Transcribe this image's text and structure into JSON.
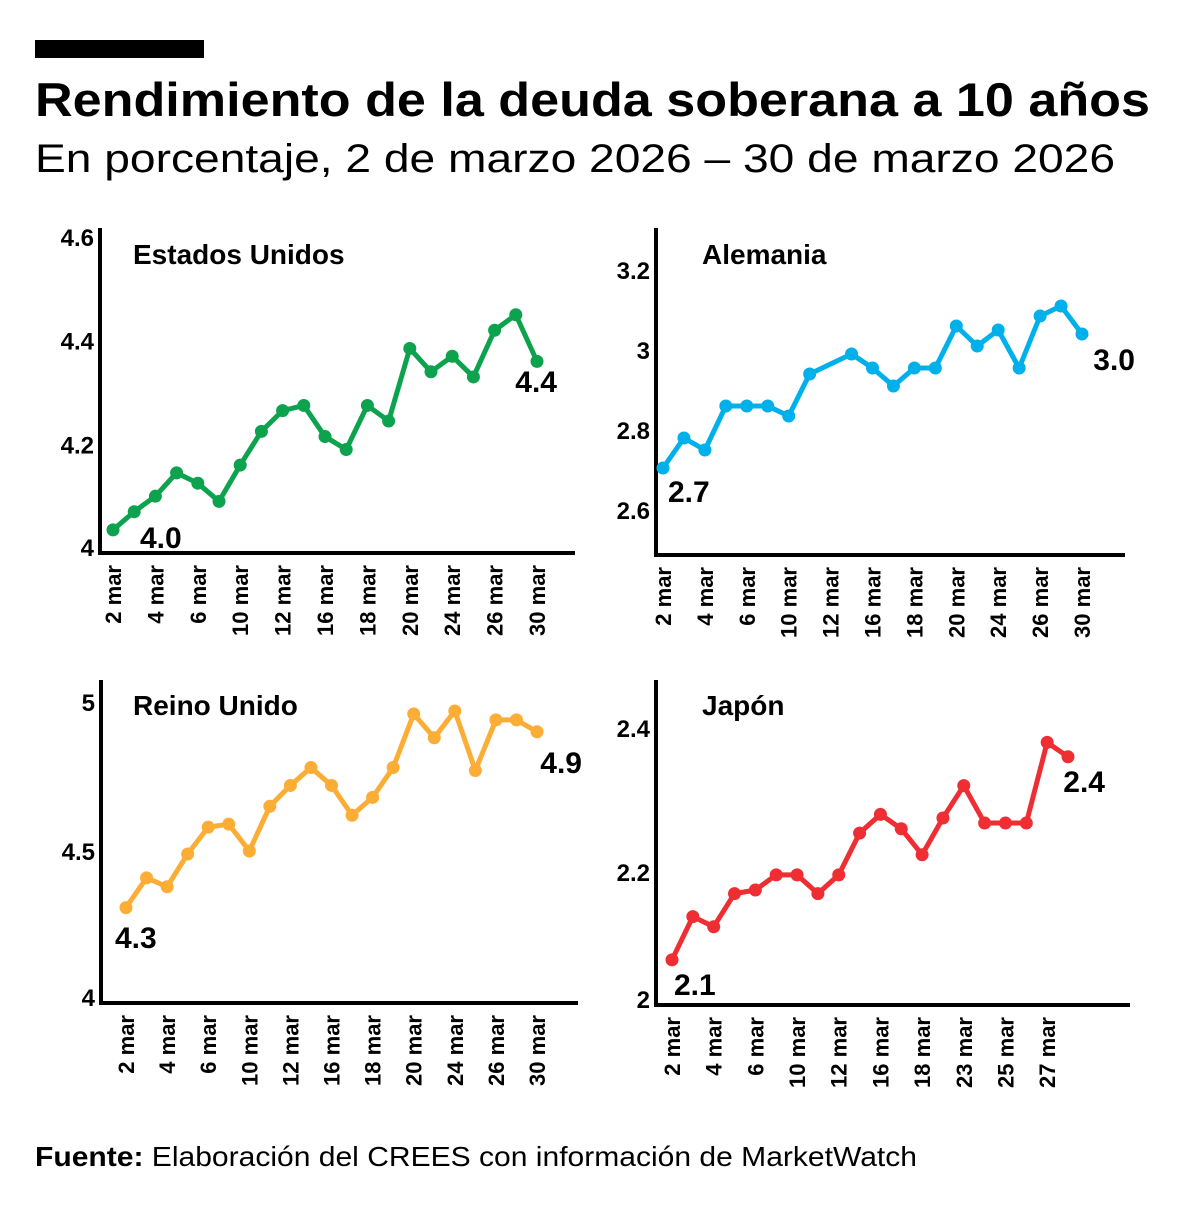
{
  "header": {
    "title": "Rendimiento de la deuda soberana a 10 años",
    "subtitle": "En porcentaje, 2 de marzo 2026 – 30 de marzo 2026"
  },
  "source": {
    "label": "Fuente:",
    "text": " Elaboración del CREES con información de MarketWatch"
  },
  "chart_data": [
    {
      "type": "line",
      "title": "Estados Unidos",
      "color": "#0ca24e",
      "categories": [
        "2 mar",
        "3 mar",
        "4 mar",
        "5 mar",
        "6 mar",
        "9 mar",
        "10 mar",
        "11 mar",
        "12 mar",
        "13 mar",
        "16 mar",
        "17 mar",
        "18 mar",
        "19 mar",
        "20 mar",
        "23 mar",
        "24 mar",
        "25 mar",
        "26 mar",
        "27 mar",
        "30 mar"
      ],
      "values": [
        4.035,
        4.07,
        4.1,
        4.145,
        4.125,
        4.09,
        4.16,
        4.225,
        4.265,
        4.275,
        4.215,
        4.19,
        4.275,
        4.245,
        4.385,
        4.34,
        4.37,
        4.33,
        4.42,
        4.45,
        4.36
      ],
      "x_tick_labels": [
        "2 mar",
        "4 mar",
        "6 mar",
        "10 mar",
        "12 mar",
        "16 mar",
        "18 mar",
        "20 mar",
        "24 mar",
        "26 mar",
        "30 mar"
      ],
      "y_tick_labels": [
        "4",
        "4.2",
        "4.4",
        "4.6"
      ],
      "ylim": [
        4,
        4.6
      ],
      "annotations": {
        "start": "4.0",
        "end": "4.4"
      },
      "grid": false
    },
    {
      "type": "line",
      "title": "Alemania",
      "color": "#00b0ea",
      "categories": [
        "2 mar",
        "3 mar",
        "4 mar",
        "5 mar",
        "6 mar",
        "9 mar",
        "10 mar",
        "11 mar",
        "12 mar",
        "13 mar",
        "16 mar",
        "17 mar",
        "18 mar",
        "19 mar",
        "20 mar",
        "23 mar",
        "24 mar",
        "25 mar",
        "26 mar",
        "27 mar",
        "30 mar"
      ],
      "values": [
        2.705,
        2.78,
        2.75,
        2.86,
        2.86,
        2.86,
        2.835,
        2.94,
        null,
        2.99,
        2.955,
        2.91,
        2.955,
        2.955,
        3.06,
        3.01,
        3.05,
        2.955,
        3.085,
        3.11,
        3.04
      ],
      "x_tick_labels": [
        "2 mar",
        "4 mar",
        "6 mar",
        "10 mar",
        "12 mar",
        "16 mar",
        "18 mar",
        "20 mar",
        "24 mar",
        "26 mar",
        "30 mar"
      ],
      "y_tick_labels": [
        "2.6",
        "2.8",
        "3",
        "3.2"
      ],
      "ylim": [
        2.5,
        3.3
      ],
      "annotations": {
        "start": "2.7",
        "end": "3.0"
      },
      "grid": false
    },
    {
      "type": "line",
      "title": "Reino Unido",
      "color": "#fbad35",
      "categories": [
        "2 mar",
        "3 mar",
        "4 mar",
        "5 mar",
        "6 mar",
        "9 mar",
        "10 mar",
        "11 mar",
        "12 mar",
        "13 mar",
        "16 mar",
        "17 mar",
        "18 mar",
        "19 mar",
        "20 mar",
        "23 mar",
        "24 mar",
        "25 mar",
        "26 mar",
        "27 mar",
        "30 mar"
      ],
      "values": [
        4.31,
        4.41,
        4.38,
        4.49,
        4.58,
        4.59,
        4.5,
        4.65,
        4.72,
        4.78,
        4.72,
        4.62,
        4.68,
        4.78,
        4.96,
        4.88,
        4.97,
        4.77,
        4.94,
        4.94,
        4.9
      ],
      "x_tick_labels": [
        "2 mar",
        "4 mar",
        "6 mar",
        "10 mar",
        "12 mar",
        "16 mar",
        "18 mar",
        "20 mar",
        "24 mar",
        "26 mar",
        "30 mar"
      ],
      "y_tick_labels": [
        "4",
        "4.5",
        "5"
      ],
      "ylim": [
        4,
        5.1
      ],
      "annotations": {
        "start": "4.3",
        "end": "4.9"
      },
      "grid": false
    },
    {
      "type": "line",
      "title": "Japón",
      "color": "#ee2e33",
      "categories": [
        "2 mar",
        "3 mar",
        "4 mar",
        "5 mar",
        "6 mar",
        "9 mar",
        "10 mar",
        "11 mar",
        "12 mar",
        "13 mar",
        "16 mar",
        "17 mar",
        "18 mar",
        "19 mar",
        "23 mar",
        "24 mar",
        "25 mar",
        "26 mar",
        "27 mar",
        "30 mar"
      ],
      "values": [
        2.078,
        2.138,
        2.124,
        2.17,
        2.175,
        2.196,
        2.196,
        2.17,
        2.196,
        2.254,
        2.28,
        2.26,
        2.224,
        2.275,
        2.32,
        2.268,
        2.268,
        2.268,
        2.38,
        2.36
      ],
      "x_tick_labels": [
        "2 mar",
        "4 mar",
        "6 mar",
        "10 mar",
        "12 mar",
        "16 mar",
        "18 mar",
        "23 mar",
        "25 mar",
        "27 mar"
      ],
      "y_tick_labels": [
        "2",
        "2.2",
        "2.4"
      ],
      "ylim": [
        2,
        2.47
      ],
      "annotations": {
        "start": "2.1",
        "end": "2.4"
      },
      "grid": false
    }
  ]
}
